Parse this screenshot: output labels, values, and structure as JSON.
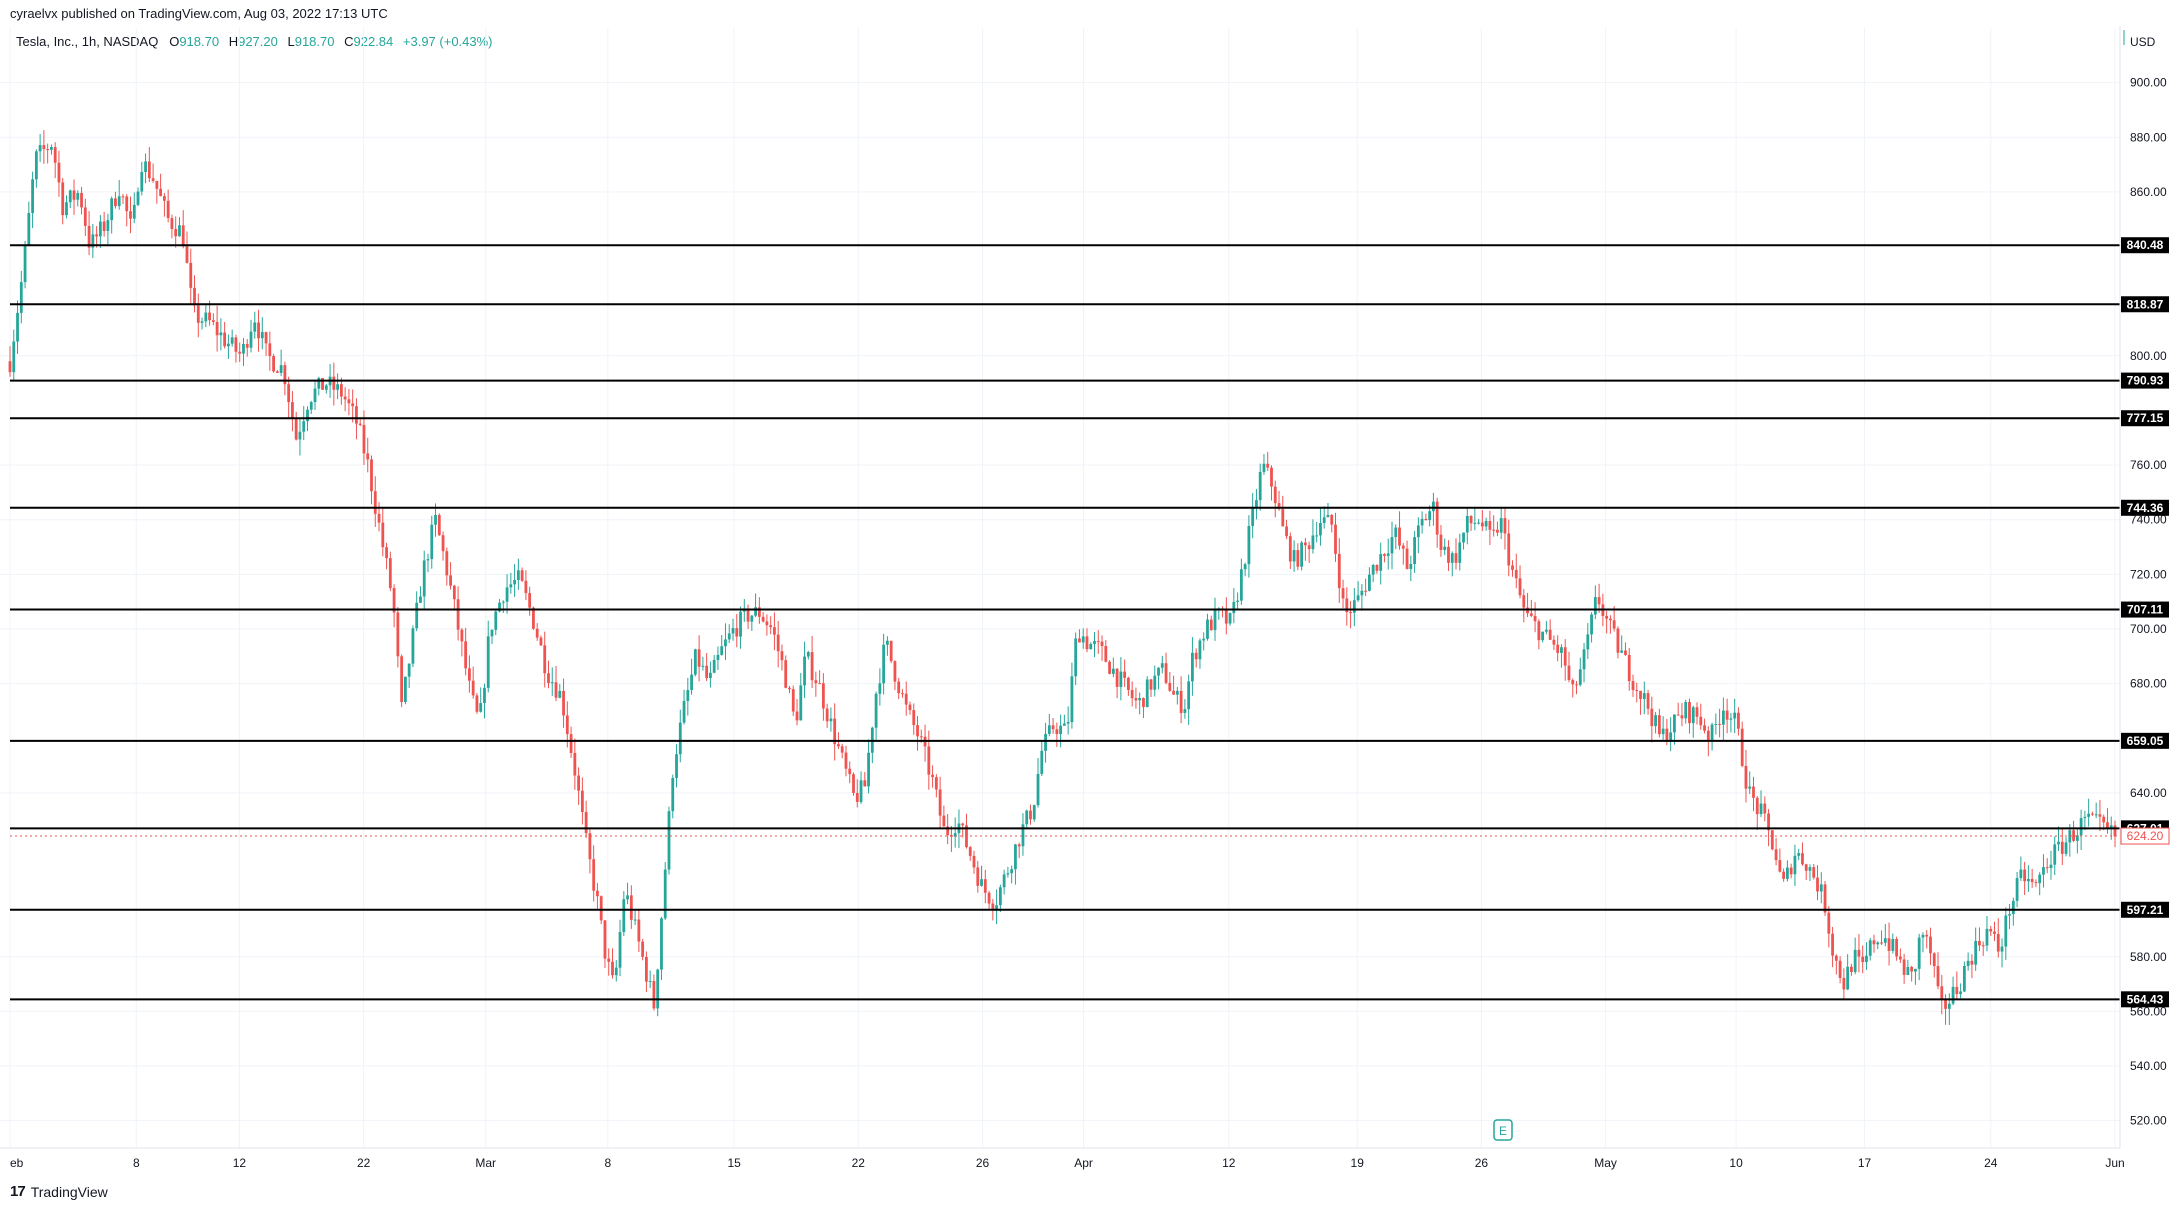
{
  "header": {
    "published": "cyraelvx published on TradingView.com, Aug 03, 2022 17:13 UTC"
  },
  "legend": {
    "symbol": "Tesla, Inc., 1h, NASDAQ",
    "open_label": "O",
    "open": "918.70",
    "high_label": "H",
    "high": "927.20",
    "low_label": "L",
    "low": "918.70",
    "close_label": "C",
    "close": "922.84",
    "change": "+3.97 (+0.43%)"
  },
  "brand": {
    "logo": "17",
    "name": "TradingView"
  },
  "colors": {
    "up": "#26a69a",
    "down": "#ef5350",
    "line": "#000000",
    "grid": "#f0f3fa",
    "current": "#ef5350"
  },
  "chart_data": {
    "type": "candlestick",
    "currency": "USD",
    "ylim": [
      510,
      920
    ],
    "y_ticks": [
      "900.00",
      "880.00",
      "860.00",
      "800.00",
      "760.00",
      "740.00",
      "720.00",
      "700.00",
      "680.00",
      "640.00",
      "580.00",
      "560.00",
      "540.00",
      "520.00"
    ],
    "x_ticks": [
      "eb",
      "8",
      "12",
      "22",
      "Mar",
      "8",
      "15",
      "22",
      "26",
      "Apr",
      "12",
      "19",
      "26",
      "May",
      "10",
      "17",
      "24",
      "Jun"
    ],
    "x_tick_frac": [
      0.0,
      0.06,
      0.109,
      0.168,
      0.226,
      0.284,
      0.344,
      0.403,
      0.462,
      0.51,
      0.579,
      0.64,
      0.699,
      0.758,
      0.82,
      0.881,
      0.941,
      1.0
    ],
    "horizontal_levels": [
      "840.48",
      "818.87",
      "790.93",
      "777.15",
      "744.36",
      "707.11",
      "659.05",
      "627.01",
      "597.21",
      "564.43"
    ],
    "current_price": "624.20",
    "price_path": [
      [
        0.0,
        798
      ],
      [
        0.006,
        830
      ],
      [
        0.012,
        872
      ],
      [
        0.02,
        878
      ],
      [
        0.025,
        855
      ],
      [
        0.033,
        860
      ],
      [
        0.038,
        840
      ],
      [
        0.045,
        848
      ],
      [
        0.052,
        862
      ],
      [
        0.058,
        845
      ],
      [
        0.062,
        872
      ],
      [
        0.068,
        865
      ],
      [
        0.075,
        850
      ],
      [
        0.082,
        845
      ],
      [
        0.087,
        815
      ],
      [
        0.095,
        812
      ],
      [
        0.103,
        805
      ],
      [
        0.11,
        800
      ],
      [
        0.116,
        815
      ],
      [
        0.122,
        800
      ],
      [
        0.13,
        795
      ],
      [
        0.136,
        770
      ],
      [
        0.142,
        785
      ],
      [
        0.15,
        790
      ],
      [
        0.158,
        786
      ],
      [
        0.165,
        775
      ],
      [
        0.17,
        760
      ],
      [
        0.176,
        735
      ],
      [
        0.182,
        710
      ],
      [
        0.186,
        670
      ],
      [
        0.19,
        690
      ],
      [
        0.196,
        720
      ],
      [
        0.202,
        740
      ],
      [
        0.208,
        720
      ],
      [
        0.213,
        700
      ],
      [
        0.219,
        675
      ],
      [
        0.223,
        665
      ],
      [
        0.228,
        700
      ],
      [
        0.235,
        715
      ],
      [
        0.242,
        718
      ],
      [
        0.248,
        705
      ],
      [
        0.255,
        685
      ],
      [
        0.262,
        675
      ],
      [
        0.268,
        650
      ],
      [
        0.274,
        620
      ],
      [
        0.279,
        600
      ],
      [
        0.283,
        580
      ],
      [
        0.287,
        568
      ],
      [
        0.292,
        605
      ],
      [
        0.297,
        590
      ],
      [
        0.302,
        575
      ],
      [
        0.306,
        562
      ],
      [
        0.31,
        600
      ],
      [
        0.315,
        650
      ],
      [
        0.32,
        670
      ],
      [
        0.326,
        690
      ],
      [
        0.332,
        680
      ],
      [
        0.338,
        692
      ],
      [
        0.344,
        700
      ],
      [
        0.35,
        705
      ],
      [
        0.356,
        706
      ],
      [
        0.362,
        700
      ],
      [
        0.368,
        684
      ],
      [
        0.373,
        665
      ],
      [
        0.378,
        690
      ],
      [
        0.384,
        680
      ],
      [
        0.39,
        665
      ],
      [
        0.396,
        650
      ],
      [
        0.401,
        638
      ],
      [
        0.406,
        642
      ],
      [
        0.411,
        675
      ],
      [
        0.416,
        695
      ],
      [
        0.42,
        685
      ],
      [
        0.426,
        670
      ],
      [
        0.432,
        660
      ],
      [
        0.438,
        645
      ],
      [
        0.444,
        625
      ],
      [
        0.45,
        630
      ],
      [
        0.456,
        618
      ],
      [
        0.462,
        605
      ],
      [
        0.468,
        600
      ],
      [
        0.474,
        612
      ],
      [
        0.48,
        625
      ],
      [
        0.486,
        635
      ],
      [
        0.49,
        655
      ],
      [
        0.496,
        665
      ],
      [
        0.502,
        662
      ],
      [
        0.507,
        700
      ],
      [
        0.512,
        695
      ],
      [
        0.518,
        692
      ],
      [
        0.524,
        685
      ],
      [
        0.53,
        678
      ],
      [
        0.536,
        672
      ],
      [
        0.542,
        680
      ],
      [
        0.548,
        685
      ],
      [
        0.553,
        675
      ],
      [
        0.558,
        672
      ],
      [
        0.562,
        690
      ],
      [
        0.568,
        700
      ],
      [
        0.574,
        705
      ],
      [
        0.58,
        702
      ],
      [
        0.585,
        720
      ],
      [
        0.59,
        740
      ],
      [
        0.595,
        760
      ],
      [
        0.6,
        752
      ],
      [
        0.605,
        735
      ],
      [
        0.61,
        725
      ],
      [
        0.616,
        730
      ],
      [
        0.622,
        740
      ],
      [
        0.628,
        738
      ],
      [
        0.634,
        705
      ],
      [
        0.64,
        710
      ],
      [
        0.646,
        720
      ],
      [
        0.652,
        728
      ],
      [
        0.658,
        735
      ],
      [
        0.664,
        722
      ],
      [
        0.67,
        738
      ],
      [
        0.676,
        745
      ],
      [
        0.68,
        730
      ],
      [
        0.686,
        725
      ],
      [
        0.692,
        738
      ],
      [
        0.698,
        740
      ],
      [
        0.704,
        732
      ],
      [
        0.708,
        740
      ],
      [
        0.714,
        720
      ],
      [
        0.72,
        705
      ],
      [
        0.726,
        700
      ],
      [
        0.732,
        695
      ],
      [
        0.738,
        690
      ],
      [
        0.742,
        675
      ],
      [
        0.748,
        690
      ],
      [
        0.754,
        712
      ],
      [
        0.76,
        700
      ],
      [
        0.766,
        690
      ],
      [
        0.772,
        680
      ],
      [
        0.778,
        672
      ],
      [
        0.784,
        660
      ],
      [
        0.79,
        665
      ],
      [
        0.796,
        670
      ],
      [
        0.802,
        668
      ],
      [
        0.808,
        660
      ],
      [
        0.814,
        672
      ],
      [
        0.82,
        665
      ],
      [
        0.826,
        640
      ],
      [
        0.832,
        632
      ],
      [
        0.838,
        620
      ],
      [
        0.842,
        605
      ],
      [
        0.848,
        618
      ],
      [
        0.853,
        615
      ],
      [
        0.858,
        608
      ],
      [
        0.862,
        600
      ],
      [
        0.866,
        582
      ],
      [
        0.871,
        570
      ],
      [
        0.876,
        580
      ],
      [
        0.88,
        575
      ],
      [
        0.885,
        586
      ],
      [
        0.89,
        588
      ],
      [
        0.895,
        582
      ],
      [
        0.9,
        575
      ],
      [
        0.904,
        572
      ],
      [
        0.908,
        590
      ],
      [
        0.913,
        580
      ],
      [
        0.917,
        560
      ],
      [
        0.922,
        565
      ],
      [
        0.926,
        570
      ],
      [
        0.93,
        578
      ],
      [
        0.935,
        585
      ],
      [
        0.94,
        590
      ],
      [
        0.945,
        582
      ],
      [
        0.95,
        598
      ],
      [
        0.956,
        610
      ],
      [
        0.962,
        605
      ],
      [
        0.968,
        615
      ],
      [
        0.974,
        620
      ],
      [
        0.98,
        625
      ],
      [
        0.986,
        630
      ],
      [
        0.992,
        628
      ],
      [
        1.0,
        624
      ]
    ]
  }
}
